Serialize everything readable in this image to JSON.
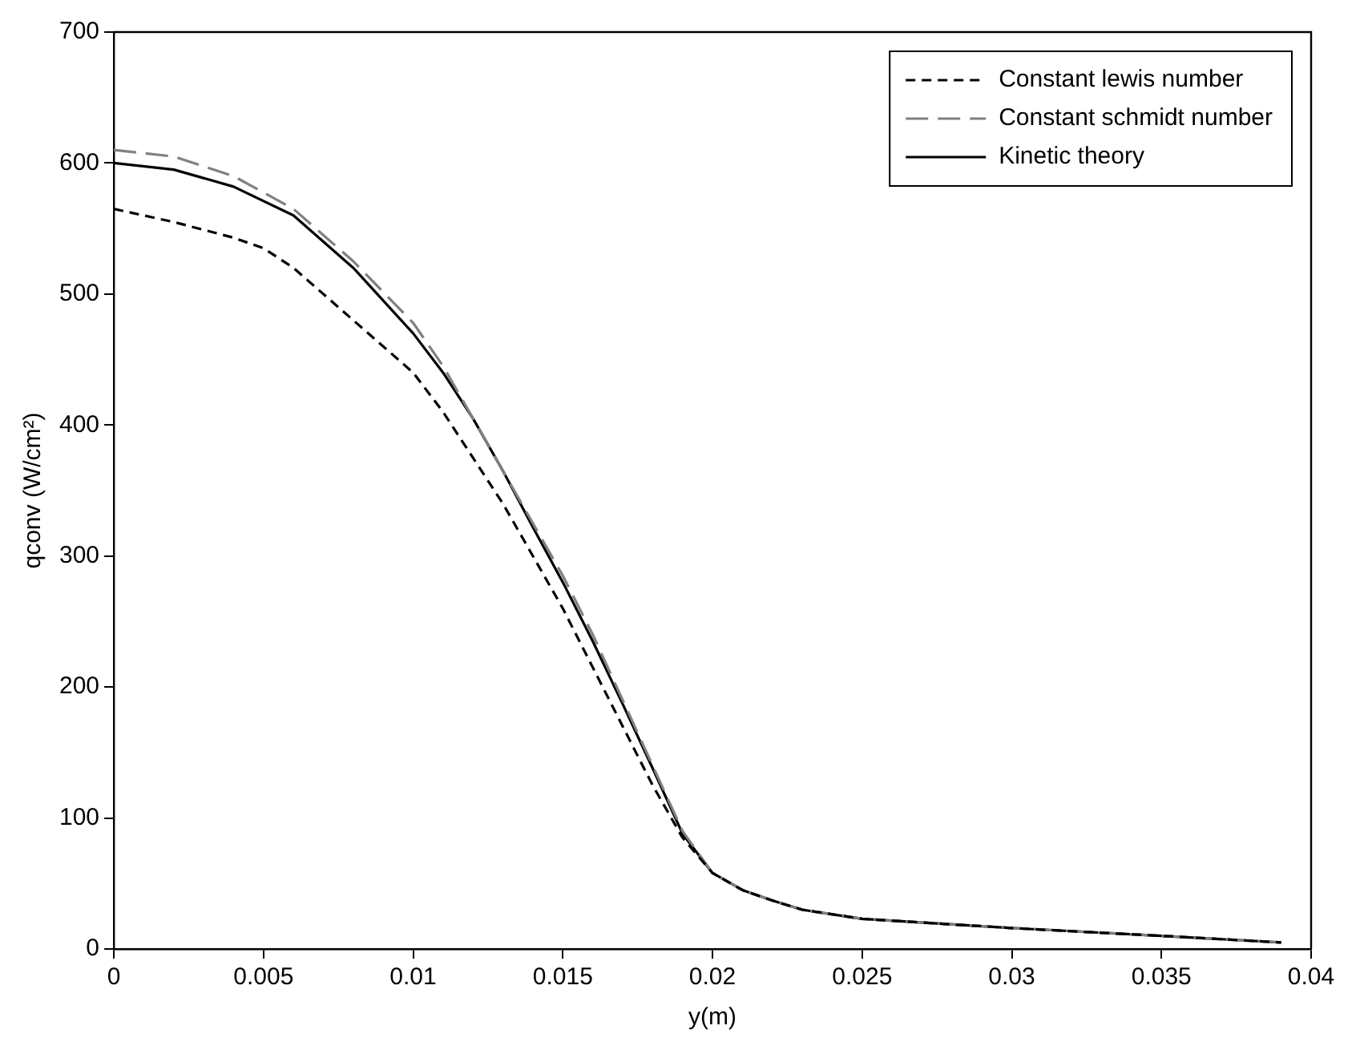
{
  "chart_data": {
    "type": "line",
    "xlabel": "y(m)",
    "ylabel": "qconv (W/cm²)",
    "xlim": [
      0,
      0.04
    ],
    "xticks": [
      0,
      0.005,
      0.01,
      0.015,
      0.02,
      0.025,
      0.03,
      0.035,
      0.04
    ],
    "ylim": [
      0,
      700
    ],
    "yticks": [
      0,
      100,
      200,
      300,
      400,
      500,
      600,
      700
    ],
    "grid": false,
    "legend": "top right",
    "marker": "none",
    "series": [
      {
        "name": "Constant lewis number",
        "color": "#000000",
        "line_style": "dashed",
        "x": [
          0,
          0.002,
          0.004,
          0.005,
          0.006,
          0.008,
          0.01,
          0.011,
          0.012,
          0.013,
          0.014,
          0.015,
          0.016,
          0.017,
          0.018,
          0.019,
          0.02,
          0.021,
          0.022,
          0.023,
          0.025,
          0.03,
          0.035,
          0.039
        ],
        "values": [
          565,
          555,
          543,
          535,
          520,
          480,
          440,
          410,
          375,
          340,
          300,
          260,
          215,
          170,
          125,
          85,
          58,
          45,
          37,
          30,
          23,
          16,
          10,
          5
        ]
      },
      {
        "name": "Constant schmidt number",
        "color": "#808080",
        "line_style": "dashed",
        "x": [
          0,
          0.002,
          0.004,
          0.006,
          0.008,
          0.01,
          0.011,
          0.012,
          0.013,
          0.014,
          0.015,
          0.016,
          0.017,
          0.018,
          0.019,
          0.02,
          0.021,
          0.022,
          0.023,
          0.025,
          0.03,
          0.035,
          0.039
        ],
        "values": [
          610,
          605,
          590,
          565,
          525,
          478,
          445,
          405,
          365,
          325,
          285,
          240,
          190,
          140,
          90,
          58,
          45,
          37,
          30,
          23,
          16,
          10,
          5
        ]
      },
      {
        "name": "Kinetic theory",
        "color": "#000000",
        "line_style": "solid",
        "x": [
          0,
          0.002,
          0.004,
          0.006,
          0.008,
          0.01,
          0.011,
          0.012,
          0.013,
          0.014,
          0.015,
          0.016,
          0.017,
          0.018,
          0.019,
          0.02,
          0.021,
          0.022,
          0.023,
          0.025,
          0.03,
          0.035,
          0.039
        ],
        "values": [
          600,
          595,
          582,
          560,
          520,
          470,
          440,
          405,
          365,
          322,
          280,
          235,
          187,
          138,
          88,
          58,
          45,
          37,
          30,
          23,
          16,
          10,
          5
        ]
      }
    ]
  }
}
